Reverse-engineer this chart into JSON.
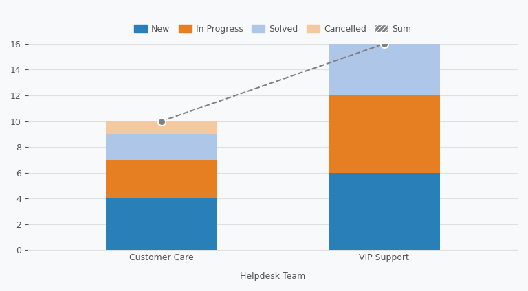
{
  "categories": [
    "Customer Care",
    "VIP Support"
  ],
  "new": [
    4,
    6
  ],
  "in_progress": [
    3,
    6
  ],
  "solved": [
    2,
    4
  ],
  "cancelled": [
    1,
    0
  ],
  "sum": [
    10,
    16
  ],
  "colors": {
    "new": "#2980b9",
    "in_progress": "#e67e22",
    "solved": "#aec6e8",
    "cancelled": "#f5c9a0",
    "sum_dot": "#808080"
  },
  "xlabel": "Helpdesk Team",
  "ylim": [
    0,
    16
  ],
  "yticks": [
    0,
    2,
    4,
    6,
    8,
    10,
    12,
    14,
    16
  ],
  "legend_labels": [
    "New",
    "In Progress",
    "Solved",
    "Cancelled",
    "Sum"
  ],
  "bg_color": "#f8f9fa",
  "grid_color": "#e0e0e0",
  "bar_width": 0.5
}
